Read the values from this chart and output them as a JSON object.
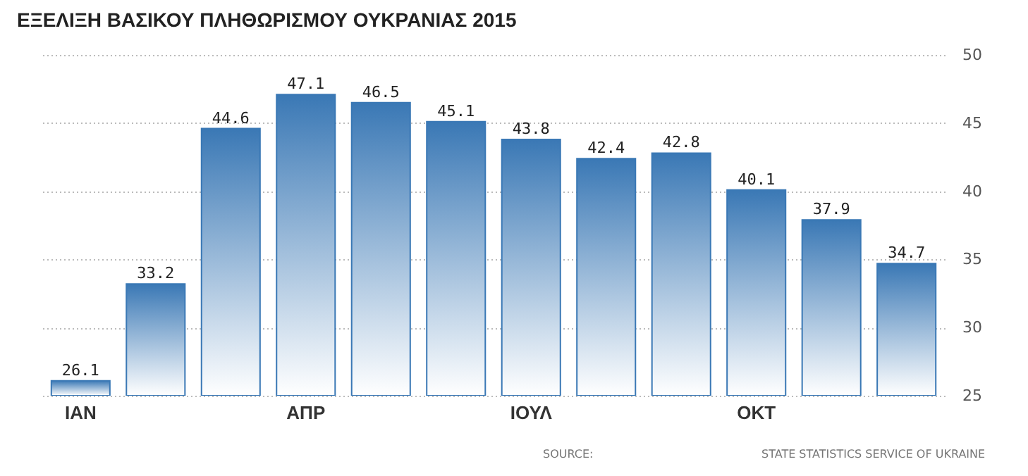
{
  "chart_data": {
    "type": "bar",
    "title": "ΕΞΕΛΙΞΗ ΒΑΣΙΚΟΥ ΠΛΗΘΩΡΙΣΜΟΥ ΟΥΚΡΑΝΙΑΣ 2015",
    "categories": [
      "ΙΑΝ",
      null,
      null,
      "ΑΠΡ",
      null,
      null,
      "ΙΟΥΛ",
      null,
      null,
      "ΟΚΤ",
      null,
      null
    ],
    "values": [
      26.1,
      33.2,
      44.6,
      47.1,
      46.5,
      45.1,
      43.8,
      42.4,
      42.8,
      40.1,
      37.9,
      34.7
    ],
    "color": "#3a78b5",
    "ylim": [
      25,
      50
    ],
    "yticks": [
      25,
      30,
      35,
      40,
      45,
      50
    ],
    "grid": "y",
    "data_labels": true,
    "annotations": [
      "SOURCE:",
      "STATE STATISTICS SERVICE OF UKRAINE"
    ]
  }
}
